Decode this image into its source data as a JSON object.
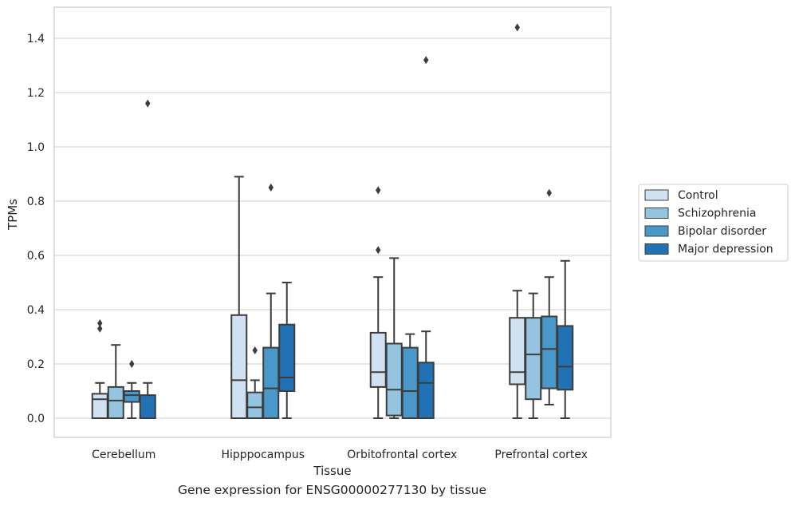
{
  "caption": "Gene expression for ENSG00000277130 by tissue",
  "chart_data": {
    "type": "box",
    "xlabel": "Tissue",
    "ylabel": "TPMs",
    "ylim": [
      -0.07,
      1.52
    ],
    "yticks": [
      0.0,
      0.2,
      0.4,
      0.6,
      0.8,
      1.0,
      1.2,
      1.4
    ],
    "ytick_labels": [
      "0.0",
      "0.2",
      "0.4",
      "0.6",
      "0.8",
      "1.0",
      "1.2",
      "1.4"
    ],
    "grid": true,
    "legend_position": "outside-right",
    "categories": [
      "Cerebellum",
      "Hipppocampus",
      "Orbitofrontal cortex",
      "Prefrontal cortex"
    ],
    "series": [
      {
        "name": "Control",
        "color": "#d0e1f2",
        "boxes": [
          {
            "whislo": 0.0,
            "q1": 0.0,
            "med": 0.07,
            "q3": 0.09,
            "whishi": 0.13,
            "fliers": [
              0.33,
              0.35
            ]
          },
          {
            "whislo": 0.0,
            "q1": 0.0,
            "med": 0.14,
            "q3": 0.38,
            "whishi": 0.89,
            "fliers": []
          },
          {
            "whislo": 0.0,
            "q1": 0.115,
            "med": 0.17,
            "q3": 0.315,
            "whishi": 0.52,
            "fliers": [
              0.62,
              0.84
            ]
          },
          {
            "whislo": 0.0,
            "q1": 0.125,
            "med": 0.17,
            "q3": 0.37,
            "whishi": 0.47,
            "fliers": [
              1.44
            ]
          }
        ]
      },
      {
        "name": "Schizophrenia",
        "color": "#94c4df",
        "boxes": [
          {
            "whislo": 0.0,
            "q1": 0.0,
            "med": 0.065,
            "q3": 0.115,
            "whishi": 0.27,
            "fliers": []
          },
          {
            "whislo": 0.0,
            "q1": 0.0,
            "med": 0.04,
            "q3": 0.095,
            "whishi": 0.14,
            "fliers": [
              0.25
            ]
          },
          {
            "whislo": 0.0,
            "q1": 0.01,
            "med": 0.105,
            "q3": 0.275,
            "whishi": 0.59,
            "fliers": []
          },
          {
            "whislo": 0.0,
            "q1": 0.07,
            "med": 0.235,
            "q3": 0.37,
            "whishi": 0.46,
            "fliers": []
          }
        ]
      },
      {
        "name": "Bipolar disorder",
        "color": "#4a98c9",
        "boxes": [
          {
            "whislo": 0.0,
            "q1": 0.06,
            "med": 0.085,
            "q3": 0.1,
            "whishi": 0.13,
            "fliers": [
              0.2
            ]
          },
          {
            "whislo": 0.0,
            "q1": 0.0,
            "med": 0.11,
            "q3": 0.26,
            "whishi": 0.46,
            "fliers": [
              0.85
            ]
          },
          {
            "whislo": 0.0,
            "q1": 0.0,
            "med": 0.1,
            "q3": 0.26,
            "whishi": 0.31,
            "fliers": []
          },
          {
            "whislo": 0.05,
            "q1": 0.11,
            "med": 0.255,
            "q3": 0.375,
            "whishi": 0.52,
            "fliers": [
              0.83
            ]
          }
        ]
      },
      {
        "name": "Major depression",
        "color": "#2171b5",
        "boxes": [
          {
            "whislo": 0.0,
            "q1": 0.0,
            "med": 0.0,
            "q3": 0.085,
            "whishi": 0.13,
            "fliers": [
              1.16
            ]
          },
          {
            "whislo": 0.0,
            "q1": 0.1,
            "med": 0.15,
            "q3": 0.345,
            "whishi": 0.5,
            "fliers": []
          },
          {
            "whislo": 0.0,
            "q1": 0.0,
            "med": 0.13,
            "q3": 0.205,
            "whishi": 0.32,
            "fliers": [
              1.32
            ]
          },
          {
            "whislo": 0.0,
            "q1": 0.105,
            "med": 0.19,
            "q3": 0.34,
            "whishi": 0.58,
            "fliers": []
          }
        ]
      }
    ]
  }
}
